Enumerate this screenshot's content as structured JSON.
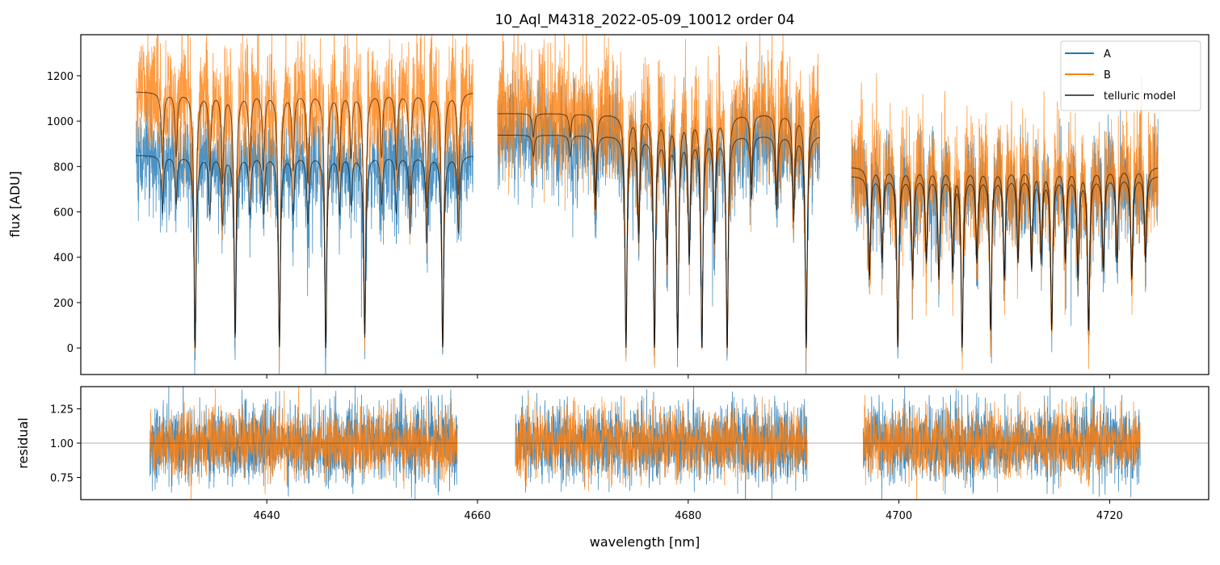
{
  "chart_data": [
    {
      "type": "line",
      "title": "10_Aql_M4318_2022-05-09_10012  order 04",
      "xlabel": "",
      "ylabel": "flux [ADU]",
      "xlim": [
        4622.35,
        4729.4
      ],
      "ylim": [
        -117,
        1381
      ],
      "yticks": [
        0,
        200,
        400,
        600,
        800,
        1000,
        1200
      ],
      "xticks": [
        4640,
        4660,
        4680,
        4700,
        4720
      ],
      "grid": false,
      "legend": {
        "placement": "top-right",
        "entries": [
          "A",
          "B",
          "telluric model"
        ]
      },
      "colors": {
        "A": "#1f77b4",
        "B": "#ff7f0e",
        "telluric model": "#000000"
      },
      "segments": [
        {
          "range": [
            4627.6,
            4659.6
          ],
          "continuum_A": 850,
          "continuum_B": 1130
        },
        {
          "range": [
            4661.9,
            4692.5
          ],
          "continuum_A": 940,
          "continuum_B": 1035
        },
        {
          "range": [
            4695.5,
            4724.6
          ],
          "continuum_A": 760,
          "continuum_B": 800
        }
      ],
      "noise_sd": {
        "A": 110,
        "B": 140
      },
      "telluric_lines_nm": [
        4630.1,
        4631.4,
        4633.2,
        4634.6,
        4635.8,
        4637.0,
        4638.4,
        4639.7,
        4641.2,
        4642.5,
        4643.9,
        4645.6,
        4646.9,
        4648.0,
        4649.3,
        4650.9,
        4652.3,
        4653.6,
        4655.2,
        4656.7,
        4658.2,
        4665.3,
        4668.8,
        4671.2,
        4674.1,
        4675.3,
        4676.8,
        4678.0,
        4679.0,
        4680.1,
        4681.3,
        4682.5,
        4683.7,
        4686.0,
        4688.4,
        4690.0,
        4691.2,
        4697.2,
        4698.4,
        4699.9,
        4701.3,
        4702.6,
        4703.8,
        4705.1,
        4706.0,
        4707.4,
        4708.7,
        4710.0,
        4711.3,
        4712.6,
        4713.5,
        4714.5,
        4715.8,
        4717.0,
        4718.0,
        4719.4,
        4720.7,
        4722.1,
        4723.4
      ],
      "telluric_line_depths": [
        0.3,
        0.25,
        1.0,
        0.3,
        0.35,
        0.95,
        0.3,
        0.3,
        1.0,
        0.3,
        0.35,
        1.0,
        0.3,
        0.25,
        0.95,
        0.25,
        0.3,
        0.4,
        0.45,
        1.0,
        0.4,
        0.1,
        0.1,
        0.35,
        1.0,
        0.5,
        1.0,
        0.6,
        1.0,
        0.6,
        1.0,
        0.5,
        1.0,
        0.3,
        0.35,
        0.4,
        1.0,
        0.6,
        0.5,
        1.0,
        0.6,
        0.5,
        0.6,
        0.55,
        1.0,
        0.5,
        0.9,
        0.6,
        0.5,
        0.55,
        0.5,
        0.9,
        0.5,
        0.6,
        0.9,
        0.55,
        0.5,
        0.6,
        0.5
      ]
    },
    {
      "type": "line",
      "xlabel": "wavelength [nm]",
      "ylabel": "residual",
      "xlim": [
        4622.35,
        4729.4
      ],
      "ylim": [
        0.588,
        1.412
      ],
      "yticks": [
        "0.75",
        "1.00",
        "1.25"
      ],
      "xticks": [
        "4640",
        "4660",
        "4680",
        "4700",
        "4720"
      ],
      "reference_line": 1.0,
      "segments": [
        [
          4628.9,
          4658.1
        ],
        [
          4663.6,
          4691.3
        ],
        [
          4696.6,
          4722.9
        ]
      ],
      "noise_sd": {
        "A": 0.14,
        "B": 0.12
      },
      "series": [
        "A",
        "B"
      ]
    }
  ]
}
